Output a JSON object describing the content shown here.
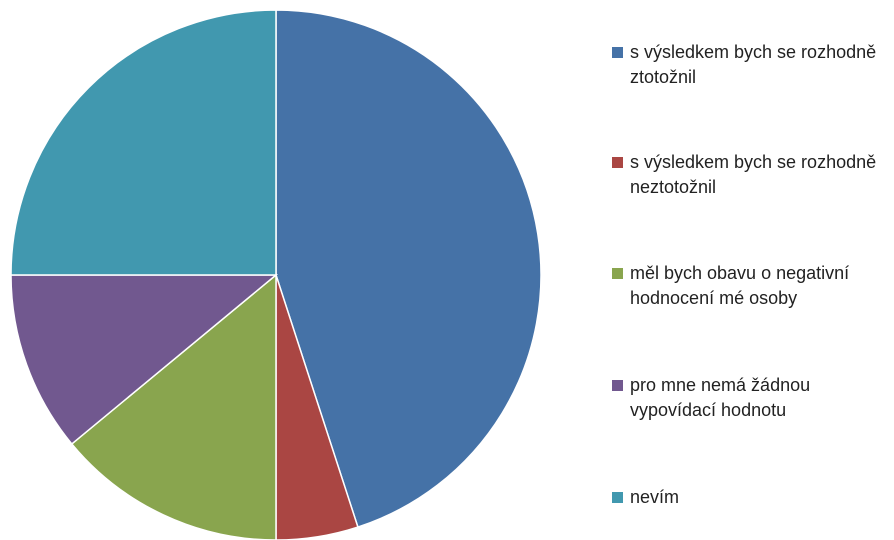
{
  "chart_data": {
    "type": "pie",
    "categories": [
      "s výsledkem bych se rozhodně ztotožnil",
      "s výsledkem bych se rozhodně neztotožnil",
      "měl bych obavu o negativní hodnocení mé osoby",
      "pro mne nemá žádnou vypovídací hodnotu",
      "nevím"
    ],
    "values": [
      45,
      5,
      14,
      11,
      25
    ],
    "colors": [
      "#4572a7",
      "#aa4643",
      "#89a54e",
      "#71588f",
      "#4198af"
    ]
  }
}
